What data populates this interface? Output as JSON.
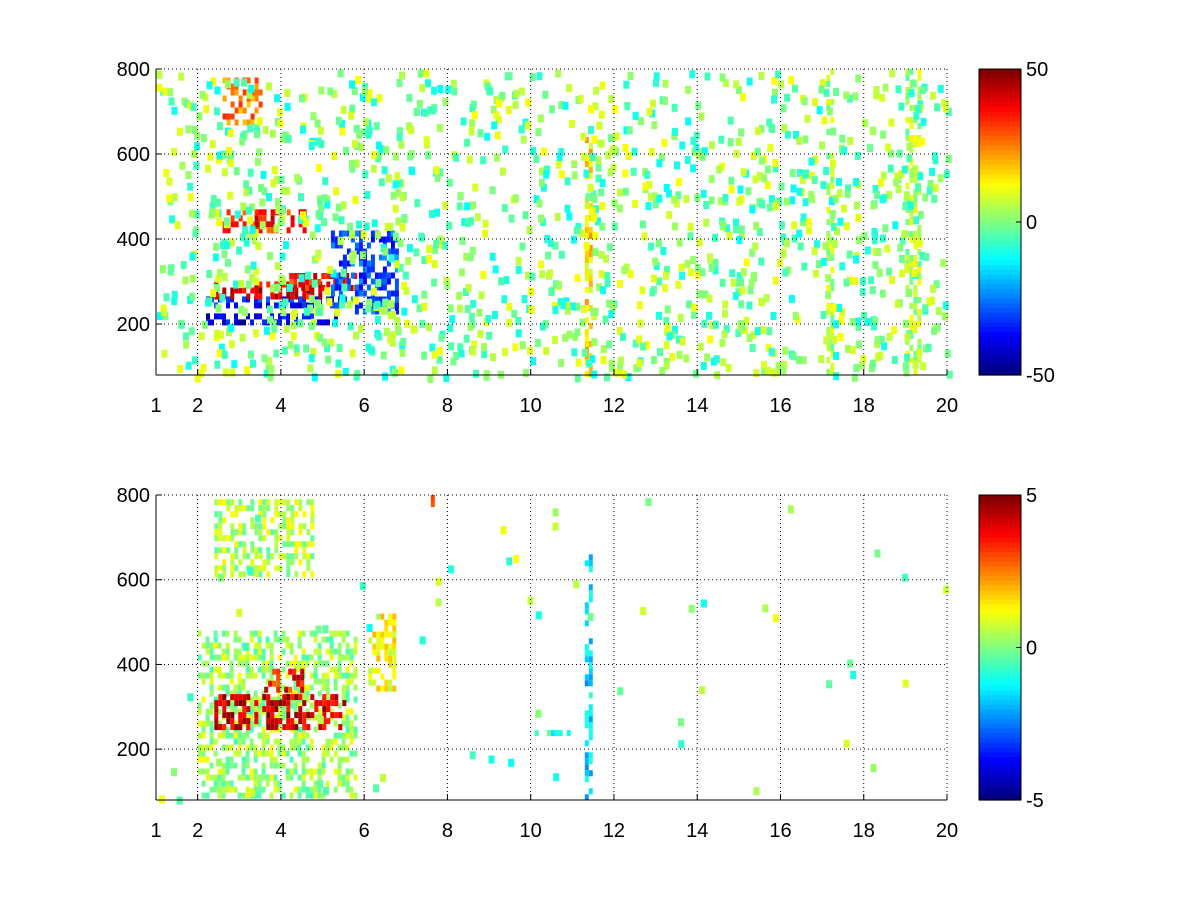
{
  "chart_data": [
    {
      "type": "heatmap",
      "title": "",
      "xlabel": "",
      "ylabel": "",
      "xlim": [
        1,
        20
      ],
      "ylim": [
        80,
        800
      ],
      "grid": true,
      "colormap": "jet",
      "x_ticks": [
        1,
        2,
        4,
        6,
        8,
        10,
        12,
        14,
        16,
        18,
        20
      ],
      "y_ticks": [
        200,
        400,
        600,
        800
      ],
      "colorbar": {
        "clim": [
          -50,
          50
        ],
        "ticks": [
          50,
          0,
          -50
        ]
      },
      "features": [
        {
          "x": [
            2.2,
            5.4
          ],
          "y": [
            195,
            225
          ],
          "value": -40
        },
        {
          "x": [
            2.2,
            5.6
          ],
          "y": [
            235,
            265
          ],
          "value": -35
        },
        {
          "x": [
            2.4,
            5.2
          ],
          "y": [
            260,
            300
          ],
          "value": 40
        },
        {
          "x": [
            4.2,
            5.8
          ],
          "y": [
            280,
            320
          ],
          "value": 35
        },
        {
          "x": [
            2.6,
            4.6
          ],
          "y": [
            420,
            470
          ],
          "value": 35
        },
        {
          "x": [
            2.6,
            3.6
          ],
          "y": [
            670,
            780
          ],
          "value": 25
        },
        {
          "x": [
            5.2,
            6.8
          ],
          "y": [
            220,
            420
          ],
          "value": -30
        },
        {
          "x": [
            11.3,
            11.45
          ],
          "y": [
            80,
            640
          ],
          "value": 15
        },
        {
          "x": [
            17.1,
            17.3
          ],
          "y": [
            80,
            800
          ],
          "value": 5
        },
        {
          "x": [
            19.0,
            19.4
          ],
          "y": [
            80,
            800
          ],
          "value": 5
        }
      ]
    },
    {
      "type": "heatmap",
      "title": "",
      "xlabel": "",
      "ylabel": "",
      "xlim": [
        1,
        20
      ],
      "ylim": [
        80,
        800
      ],
      "grid": true,
      "colormap": "jet",
      "x_ticks": [
        1,
        2,
        4,
        6,
        8,
        10,
        12,
        14,
        16,
        18,
        20
      ],
      "y_ticks": [
        200,
        400,
        600,
        800
      ],
      "colorbar": {
        "clim": [
          -5,
          5
        ],
        "ticks": [
          5,
          0,
          -5
        ]
      },
      "features": [
        {
          "x": [
            2.0,
            5.8
          ],
          "y": [
            80,
            480
          ],
          "value": 0.3
        },
        {
          "x": [
            2.4,
            4.8
          ],
          "y": [
            600,
            790
          ],
          "value": 0.5
        },
        {
          "x": [
            2.4,
            5.6
          ],
          "y": [
            250,
            330
          ],
          "value": 4.2
        },
        {
          "x": [
            3.6,
            4.6
          ],
          "y": [
            330,
            390
          ],
          "value": 3.6
        },
        {
          "x": [
            6.1,
            6.8
          ],
          "y": [
            330,
            520
          ],
          "value": 1.2
        },
        {
          "x": [
            11.3,
            11.45
          ],
          "y": [
            80,
            660
          ],
          "value": -1.5
        },
        {
          "x": [
            7.6,
            7.7
          ],
          "y": [
            760,
            800
          ],
          "value": 3.5
        },
        {
          "x": [
            10.1,
            11.0
          ],
          "y": [
            225,
            245
          ],
          "value": -1.0
        },
        {
          "x": [
            19.1,
            19.2
          ],
          "y": [
            455,
            465
          ],
          "value": 2.5
        }
      ]
    }
  ]
}
